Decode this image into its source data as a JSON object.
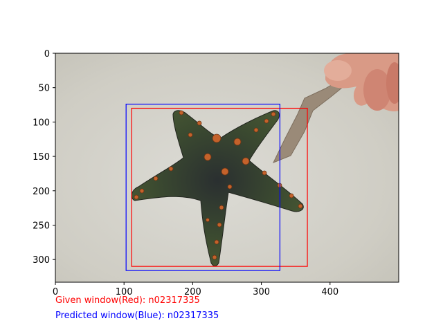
{
  "chart_data": {
    "type": "image",
    "title": "",
    "xlabel": "",
    "ylabel": "",
    "xlim": [
      0,
      500
    ],
    "ylim": [
      333,
      0
    ],
    "x_ticks": [
      0,
      100,
      200,
      300,
      400
    ],
    "y_ticks": [
      0,
      50,
      100,
      150,
      200,
      250,
      300
    ],
    "grid": false,
    "image_subject": "starfish held by a stick against sandy water",
    "boxes": [
      {
        "name": "Given window",
        "color": "#ff0000",
        "x0": 111,
        "y0": 80,
        "x1": 367,
        "y1": 310
      },
      {
        "name": "Predicted window",
        "color": "#0000ff",
        "x0": 103,
        "y0": 74,
        "x1": 327,
        "y1": 316
      }
    ]
  },
  "captions": {
    "given": "Given window(Red): n02317335",
    "predicted": "Predicted window(Blue): n02317335"
  },
  "colors": {
    "given": "#ff0000",
    "predicted": "#0000ff"
  }
}
